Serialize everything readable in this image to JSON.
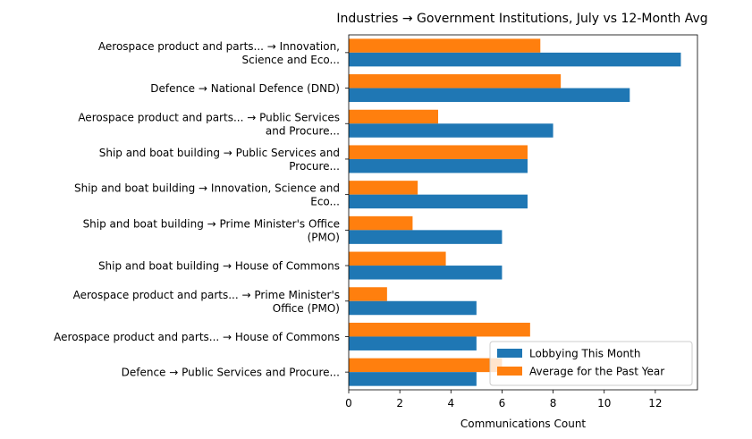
{
  "chart_data": {
    "type": "bar",
    "orientation": "horizontal",
    "title": "Industries → Government Institutions, July vs 12-Month Avg",
    "xlabel": "Communications Count",
    "ylabel": "",
    "xlim": [
      0,
      13.65
    ],
    "xticks": [
      0,
      2,
      4,
      6,
      8,
      10,
      12
    ],
    "grid": false,
    "legend_position": "bottom-right",
    "categories": [
      [
        "Aerospace product and parts... → Innovation,",
        "Science and Eco..."
      ],
      [
        "Defence → National Defence (DND)"
      ],
      [
        "Aerospace product and parts... → Public Services",
        "and Procure..."
      ],
      [
        "Ship and boat building → Public Services and",
        "Procure..."
      ],
      [
        "Ship and boat building → Innovation, Science and",
        "Eco..."
      ],
      [
        "Ship and boat building → Prime Minister's Office",
        "(PMO)"
      ],
      [
        "Ship and boat building → House of Commons"
      ],
      [
        "Aerospace product and parts... → Prime Minister's",
        "Office (PMO)"
      ],
      [
        "Aerospace product and parts... → House of Commons"
      ],
      [
        "Defence → Public Services and Procure..."
      ]
    ],
    "series": [
      {
        "name": "Lobbying This Month",
        "color": "#1f77b4",
        "values": [
          13,
          11,
          8,
          7,
          7,
          6,
          6,
          5,
          5,
          5
        ]
      },
      {
        "name": "Average for the Past Year",
        "color": "#ff7f0e",
        "values": [
          7.5,
          8.3,
          3.5,
          7.0,
          2.7,
          2.5,
          3.8,
          1.5,
          7.1,
          6.0
        ]
      }
    ]
  }
}
